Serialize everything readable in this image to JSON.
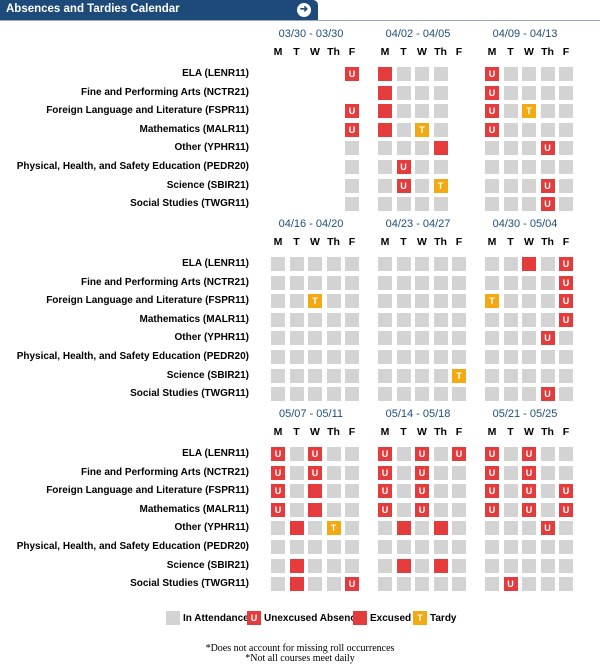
{
  "header": {
    "title": "Absences and Tardies Calendar",
    "button_icon": "arrow-right-icon"
  },
  "day_headers": [
    "M",
    "T",
    "W",
    "Th",
    "F"
  ],
  "courses": [
    "ELA (LENR11)",
    "Fine and Performing Arts (NCTR21)",
    "Foreign Language and Literature (FSPR11)",
    "Mathematics (MALR11)",
    "Other (YPHR11)",
    "Physical, Health, and Safety Education (PEDR20)",
    "Science (SBIR21)",
    "Social Studies (TWGR11)"
  ],
  "status_legend": {
    "a": "In Attendance",
    "u": "Unexcused Absence",
    "e": "Excused",
    "t": "Tardy",
    "-": "no entry"
  },
  "blocks": [
    {
      "weeks": [
        {
          "range": "03/30 - 03/30",
          "rows": [
            "----u",
            "-----",
            "----u",
            "----u",
            "----a",
            "----a",
            "----a",
            "----a"
          ]
        },
        {
          "range": "04/02 - 04/05",
          "rows": [
            "eaaa-",
            "eaaa-",
            "eaaa-",
            "eata-",
            "aaae-",
            "aua a-",
            "auat-",
            "aaaa-"
          ]
        },
        {
          "range": "04/09 - 04/13",
          "rows": [
            "uaaaa",
            "uaaaa",
            "uatáa",
            "uaaaa",
            "aaaua",
            "aaaaa",
            "aaaua",
            "aaaua"
          ]
        }
      ]
    },
    {
      "weeks": [
        {
          "range": "04/16 - 04/20",
          "rows": [
            "aaaaa",
            "aaaaa",
            "aataa",
            "aaaaa",
            "aaaaa",
            "aaaaa",
            "aaaaa",
            "aaaaa"
          ]
        },
        {
          "range": "04/23 - 04/27",
          "rows": [
            "aaaaa",
            "aaaaa",
            "aaaaa",
            "aaaaa",
            "aaaaa",
            "aaaaa",
            "aaaat",
            "aaaaa"
          ]
        },
        {
          "range": "04/30 - 05/04",
          "rows": [
            "aaeau",
            "aaaau",
            "taaau",
            "aaaau",
            "aaaua",
            "aaaaa",
            "aaaaa",
            "aaaua"
          ]
        }
      ]
    },
    {
      "weeks": [
        {
          "range": "05/07 - 05/11",
          "rows": [
            "uauaa",
            "uauaa",
            "uaeaa",
            "uaeaa",
            "aeata",
            "aaaaa",
            "aeaaa",
            "aeaau"
          ]
        },
        {
          "range": "05/14 - 05/18",
          "rows": [
            "uauau",
            "uauaa",
            "uauaa",
            "uauaa",
            "aeaea",
            "aaaaa",
            "aeaea",
            "aaaaa"
          ]
        },
        {
          "range": "05/21 - 05/25",
          "rows": [
            "uauaa",
            "uauaa",
            "uauau",
            "uauau",
            "aaaua",
            "aaaaa",
            "aaaaa",
            "auaaa"
          ]
        }
      ]
    }
  ],
  "legend": [
    {
      "key": "a",
      "label": "In Attendance"
    },
    {
      "key": "u",
      "label": "Unexcused Absence"
    },
    {
      "key": "e",
      "label": "Excused"
    },
    {
      "key": "t",
      "label": "Tardy"
    }
  ],
  "footnotes": [
    "*Does not account for missing roll occurrences",
    "*Not all courses meet daily"
  ],
  "colors": {
    "header_bg": "#1d4a79",
    "attendance": "#d3d3d3",
    "absence": "#e43c3c",
    "tardy": "#f3a912",
    "range_text": "#1f4e79"
  }
}
